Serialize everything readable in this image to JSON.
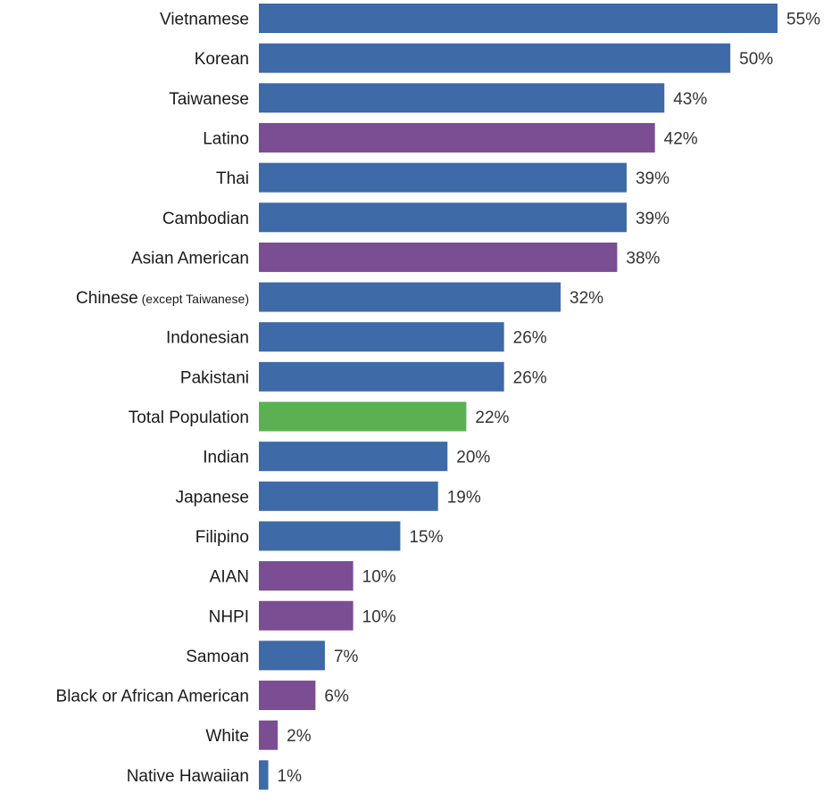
{
  "chart_data": {
    "type": "bar",
    "orientation": "horizontal",
    "title": "",
    "xlabel": "",
    "ylabel": "",
    "xlim": [
      0,
      55
    ],
    "grid": false,
    "value_suffix": "%",
    "colors": {
      "asian_subgroup": "#3e6aa8",
      "race_group": "#7b4d93",
      "total": "#5bb152"
    },
    "categories": [
      {
        "label": "Vietnamese",
        "note": "",
        "value": 55,
        "group": "asian_subgroup"
      },
      {
        "label": "Korean",
        "note": "",
        "value": 50,
        "group": "asian_subgroup"
      },
      {
        "label": "Taiwanese",
        "note": "",
        "value": 43,
        "group": "asian_subgroup"
      },
      {
        "label": "Latino",
        "note": "",
        "value": 42,
        "group": "race_group"
      },
      {
        "label": "Thai",
        "note": "",
        "value": 39,
        "group": "asian_subgroup"
      },
      {
        "label": "Cambodian",
        "note": "",
        "value": 39,
        "group": "asian_subgroup"
      },
      {
        "label": "Asian American",
        "note": "",
        "value": 38,
        "group": "race_group"
      },
      {
        "label": "Chinese",
        "note": "(except Taiwanese)",
        "value": 32,
        "group": "asian_subgroup"
      },
      {
        "label": "Indonesian",
        "note": "",
        "value": 26,
        "group": "asian_subgroup"
      },
      {
        "label": "Pakistani",
        "note": "",
        "value": 26,
        "group": "asian_subgroup"
      },
      {
        "label": "Total Population",
        "note": "",
        "value": 22,
        "group": "total"
      },
      {
        "label": "Indian",
        "note": "",
        "value": 20,
        "group": "asian_subgroup"
      },
      {
        "label": "Japanese",
        "note": "",
        "value": 19,
        "group": "asian_subgroup"
      },
      {
        "label": "Filipino",
        "note": "",
        "value": 15,
        "group": "asian_subgroup"
      },
      {
        "label": "AIAN",
        "note": "",
        "value": 10,
        "group": "race_group"
      },
      {
        "label": "NHPI",
        "note": "",
        "value": 10,
        "group": "race_group"
      },
      {
        "label": "Samoan",
        "note": "",
        "value": 7,
        "group": "asian_subgroup"
      },
      {
        "label": "Black or African American",
        "note": "",
        "value": 6,
        "group": "race_group"
      },
      {
        "label": "White",
        "note": "",
        "value": 2,
        "group": "race_group"
      },
      {
        "label": "Native Hawaiian",
        "note": "",
        "value": 1,
        "group": "asian_subgroup"
      }
    ]
  }
}
